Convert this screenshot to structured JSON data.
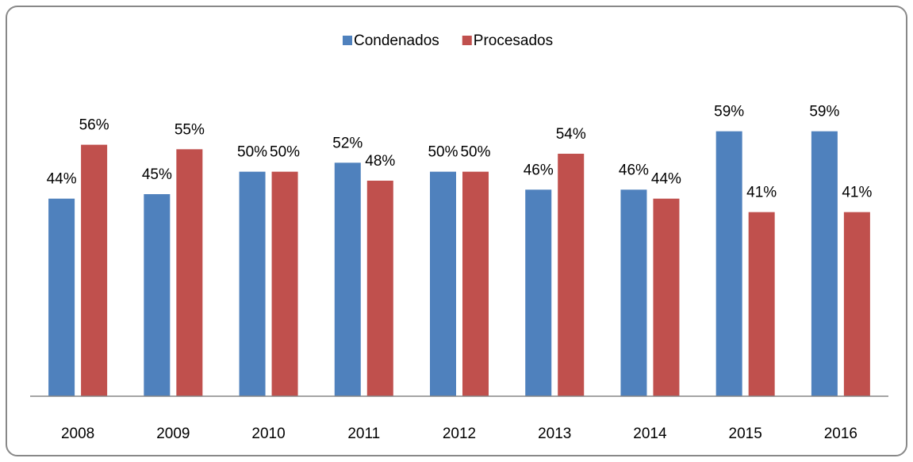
{
  "chart_data": {
    "type": "bar",
    "categories": [
      "2008",
      "2009",
      "2010",
      "2011",
      "2012",
      "2013",
      "2014",
      "2015",
      "2016"
    ],
    "series": [
      {
        "name": "Condenados",
        "color": "#4f81bd",
        "values": [
          44,
          45,
          50,
          52,
          50,
          46,
          46,
          59,
          59
        ],
        "value_labels": [
          "44%",
          "45%",
          "50%",
          "52%",
          "50%",
          "46%",
          "46%",
          "59%",
          "59%"
        ]
      },
      {
        "name": "Procesados",
        "color": "#c0504d",
        "values": [
          56,
          55,
          50,
          48,
          50,
          54,
          44,
          41,
          41
        ],
        "value_labels": [
          "56%",
          "55%",
          "50%",
          "48%",
          "50%",
          "54%",
          "44%",
          "41%",
          "41%"
        ]
      }
    ],
    "ylim": [
      0,
      60
    ],
    "legend": "top"
  }
}
